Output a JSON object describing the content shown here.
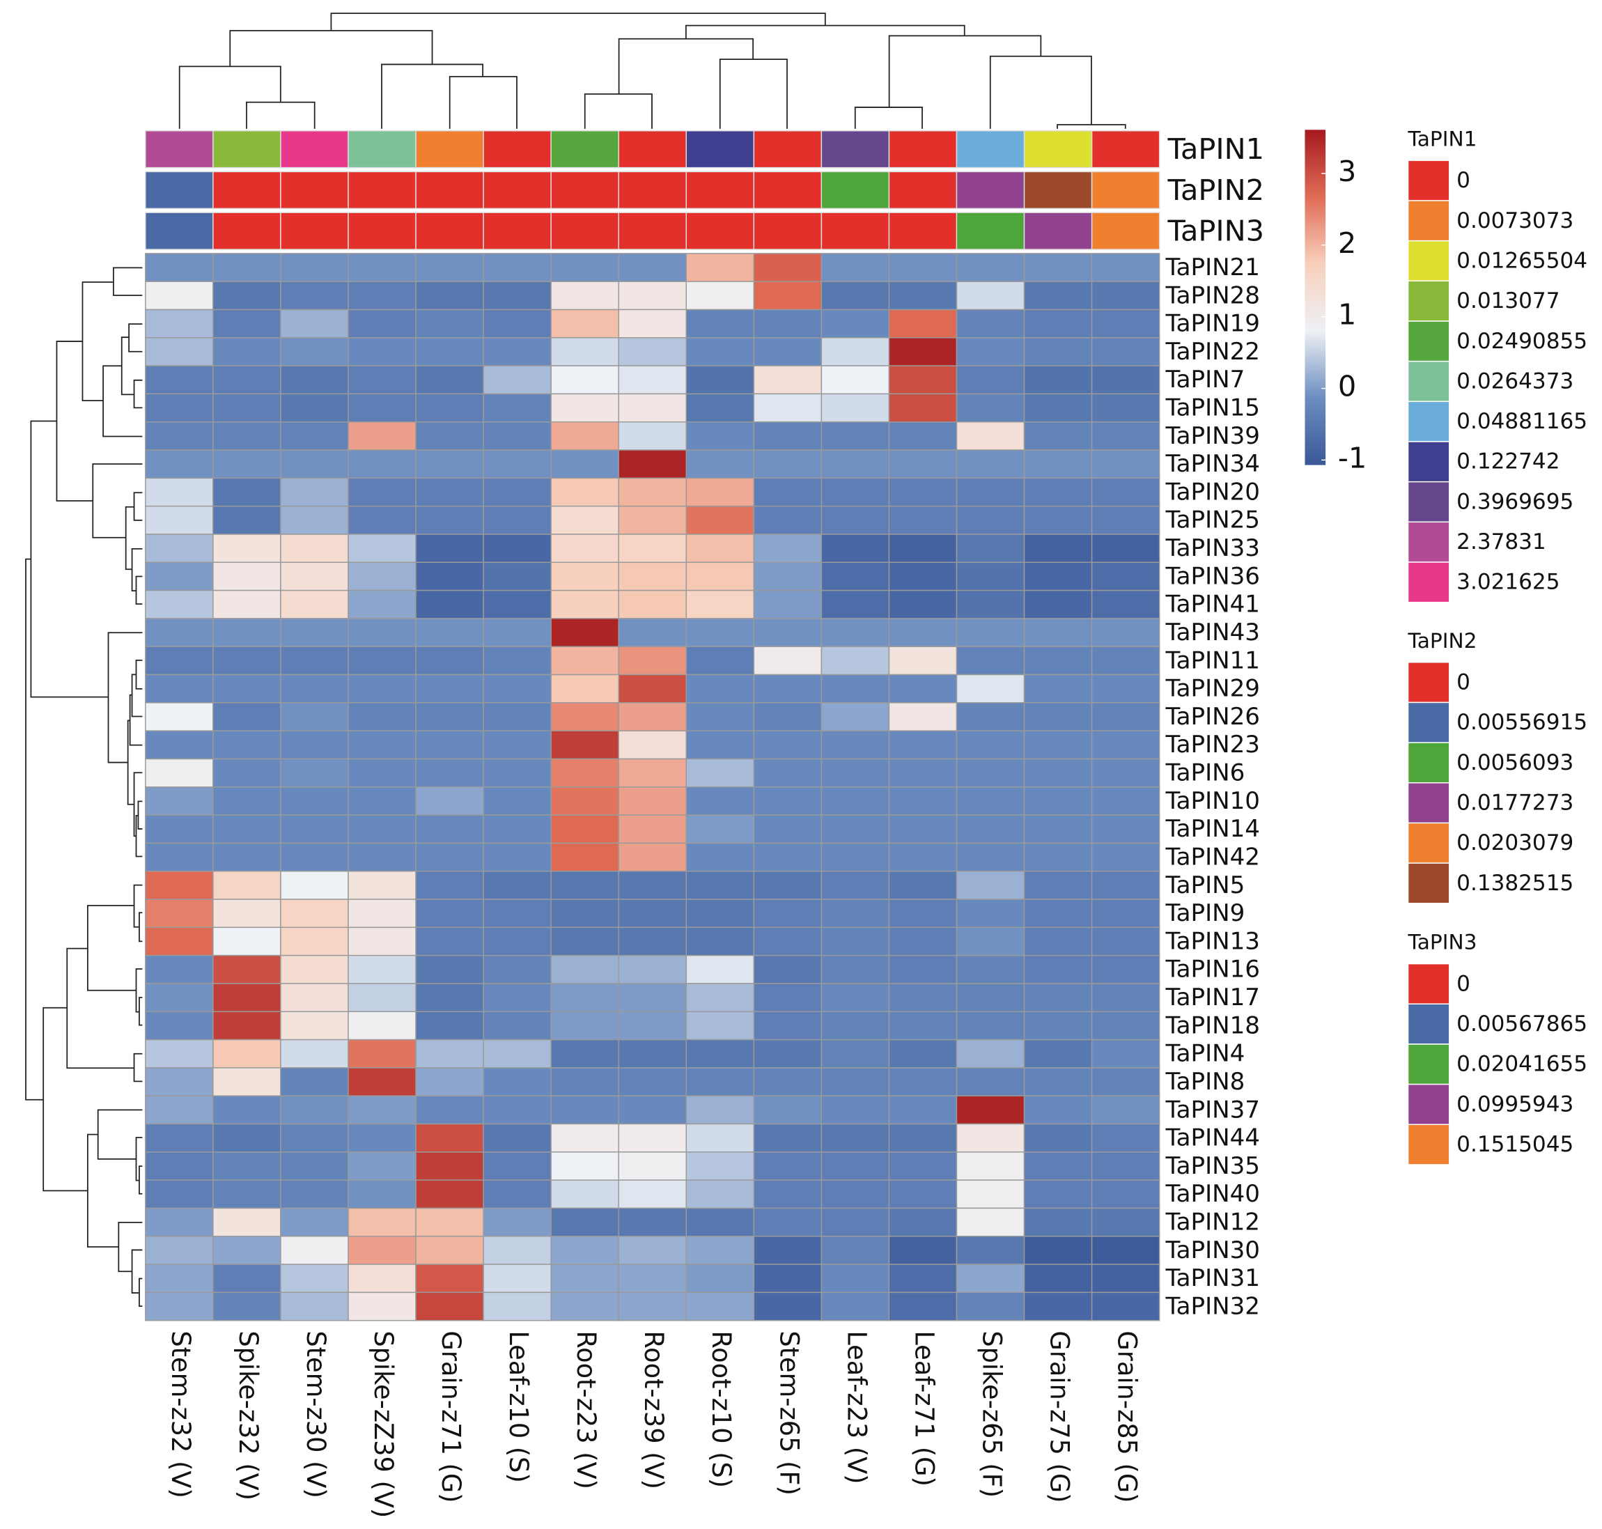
{
  "chart_data": {
    "type": "heatmap",
    "x": [
      "Stem-z32 (V)",
      "Spike-z32 (V)",
      "Stem-z30 (V)",
      "Spike-zZ39 (V)",
      "Grain-z71 (G)",
      "Leaf-z10 (S)",
      "Root-z23 (V)",
      "Root-z39 (V)",
      "Root-z10 (S)",
      "Stem-z65 (F)",
      "Leaf-z23 (V)",
      "Leaf-z71 (G)",
      "Spike-z65 (F)",
      "Grain-z75 (G)",
      "Grain-z85 (G)"
    ],
    "y": [
      "TaPIN21",
      "TaPIN28",
      "TaPIN19",
      "TaPIN22",
      "TaPIN7",
      "TaPIN15",
      "TaPIN39",
      "TaPIN34",
      "TaPIN20",
      "TaPIN25",
      "TaPIN33",
      "TaPIN36",
      "TaPIN41",
      "TaPIN43",
      "TaPIN11",
      "TaPIN29",
      "TaPIN26",
      "TaPIN23",
      "TaPIN6",
      "TaPIN10",
      "TaPIN14",
      "TaPIN42",
      "TaPIN5",
      "TaPIN9",
      "TaPIN13",
      "TaPIN16",
      "TaPIN17",
      "TaPIN18",
      "TaPIN4",
      "TaPIN8",
      "TaPIN37",
      "TaPIN44",
      "TaPIN35",
      "TaPIN40",
      "TaPIN12",
      "TaPIN30",
      "TaPIN31",
      "TaPIN32"
    ],
    "values": [
      [
        -0.1,
        -0.1,
        -0.1,
        -0.1,
        -0.1,
        -0.1,
        -0.1,
        -0.1,
        2.0,
        2.8,
        -0.1,
        -0.1,
        -0.1,
        -0.1,
        -0.1
      ],
      [
        0.9,
        -0.5,
        -0.4,
        -0.4,
        -0.5,
        -0.5,
        1.1,
        1.1,
        0.9,
        2.7,
        -0.5,
        -0.5,
        0.6,
        -0.5,
        -0.5
      ],
      [
        0.3,
        -0.4,
        0.2,
        -0.4,
        -0.3,
        -0.4,
        1.9,
        1.1,
        -0.3,
        -0.3,
        -0.2,
        2.7,
        -0.3,
        -0.4,
        -0.4
      ],
      [
        0.3,
        -0.2,
        -0.1,
        -0.2,
        -0.2,
        -0.2,
        0.6,
        0.4,
        -0.2,
        -0.2,
        0.6,
        3.5,
        -0.2,
        -0.3,
        -0.3
      ],
      [
        -0.4,
        -0.4,
        -0.5,
        -0.4,
        -0.5,
        0.3,
        0.8,
        0.7,
        -0.6,
        1.3,
        0.8,
        3.0,
        -0.4,
        -0.6,
        -0.6
      ],
      [
        -0.4,
        -0.4,
        -0.5,
        -0.4,
        -0.4,
        -0.3,
        1.1,
        1.1,
        -0.5,
        0.7,
        0.6,
        3.0,
        -0.3,
        -0.5,
        -0.5
      ],
      [
        -0.3,
        -0.3,
        -0.3,
        2.2,
        -0.3,
        -0.3,
        2.1,
        0.6,
        -0.2,
        -0.3,
        -0.3,
        -0.3,
        1.3,
        -0.3,
        -0.3
      ],
      [
        -0.1,
        -0.1,
        -0.1,
        -0.1,
        -0.1,
        -0.1,
        -0.1,
        3.5,
        -0.1,
        -0.1,
        -0.1,
        -0.1,
        -0.1,
        -0.1,
        -0.1
      ],
      [
        0.6,
        -0.5,
        0.2,
        -0.4,
        -0.4,
        -0.4,
        1.8,
        2.0,
        2.1,
        -0.4,
        -0.4,
        -0.4,
        -0.4,
        -0.4,
        -0.4
      ],
      [
        0.6,
        -0.5,
        0.2,
        -0.4,
        -0.4,
        -0.4,
        1.4,
        2.0,
        2.6,
        -0.4,
        -0.4,
        -0.4,
        -0.4,
        -0.4,
        -0.4
      ],
      [
        0.3,
        1.2,
        1.4,
        0.4,
        -0.8,
        -0.8,
        1.5,
        1.6,
        1.9,
        0.1,
        -0.8,
        -0.9,
        -0.5,
        -0.9,
        -0.9
      ],
      [
        0.0,
        1.1,
        1.3,
        0.2,
        -0.8,
        -0.6,
        1.7,
        1.8,
        1.8,
        0.0,
        -0.7,
        -0.8,
        -0.6,
        -0.8,
        -0.7
      ],
      [
        0.4,
        1.1,
        1.4,
        0.1,
        -0.8,
        -0.7,
        1.7,
        1.8,
        1.6,
        0.0,
        -0.7,
        -0.8,
        -0.6,
        -0.8,
        -0.7
      ],
      [
        -0.1,
        -0.1,
        -0.1,
        -0.1,
        -0.1,
        -0.1,
        3.5,
        -0.1,
        -0.1,
        -0.1,
        -0.1,
        -0.1,
        -0.1,
        -0.1,
        -0.1
      ],
      [
        -0.4,
        -0.4,
        -0.4,
        -0.4,
        -0.4,
        -0.3,
        2.0,
        2.3,
        -0.4,
        1.0,
        0.4,
        1.2,
        -0.3,
        -0.3,
        -0.3
      ],
      [
        -0.2,
        -0.2,
        -0.2,
        -0.2,
        -0.2,
        -0.2,
        1.8,
        3.0,
        -0.2,
        -0.2,
        -0.2,
        -0.2,
        0.7,
        -0.2,
        -0.2
      ],
      [
        0.8,
        -0.4,
        -0.1,
        -0.3,
        -0.3,
        -0.3,
        2.4,
        2.2,
        -0.2,
        -0.3,
        0.1,
        1.1,
        -0.3,
        -0.3,
        -0.3
      ],
      [
        -0.2,
        -0.2,
        -0.2,
        -0.2,
        -0.2,
        -0.2,
        3.2,
        1.3,
        -0.2,
        -0.2,
        -0.2,
        -0.2,
        -0.2,
        -0.2,
        -0.2
      ],
      [
        0.9,
        -0.2,
        -0.1,
        -0.2,
        -0.2,
        -0.2,
        2.5,
        2.1,
        0.3,
        -0.2,
        -0.2,
        -0.2,
        -0.2,
        -0.2,
        -0.2
      ],
      [
        0.0,
        -0.2,
        -0.2,
        -0.2,
        0.1,
        -0.2,
        2.6,
        2.2,
        -0.2,
        -0.2,
        -0.2,
        -0.2,
        -0.2,
        -0.2,
        -0.2
      ],
      [
        -0.2,
        -0.2,
        -0.2,
        -0.2,
        -0.2,
        -0.2,
        2.7,
        2.2,
        0.0,
        -0.2,
        -0.2,
        -0.2,
        -0.2,
        -0.2,
        -0.2
      ],
      [
        -0.2,
        -0.2,
        -0.2,
        -0.2,
        -0.2,
        -0.2,
        2.7,
        2.2,
        -0.2,
        -0.2,
        -0.2,
        -0.2,
        -0.2,
        -0.2,
        -0.2
      ],
      [
        2.7,
        1.6,
        0.8,
        1.2,
        -0.4,
        -0.5,
        -0.5,
        -0.5,
        -0.5,
        -0.5,
        -0.4,
        -0.5,
        0.2,
        -0.4,
        -0.4
      ],
      [
        2.5,
        1.2,
        1.6,
        1.1,
        -0.4,
        -0.4,
        -0.5,
        -0.5,
        -0.5,
        -0.4,
        -0.3,
        -0.4,
        -0.2,
        -0.4,
        -0.4
      ],
      [
        2.7,
        0.8,
        1.6,
        1.1,
        -0.4,
        -0.4,
        -0.5,
        -0.5,
        -0.5,
        -0.4,
        -0.3,
        -0.4,
        -0.1,
        -0.4,
        -0.4
      ],
      [
        -0.2,
        3.0,
        1.4,
        0.6,
        -0.5,
        -0.3,
        0.2,
        0.2,
        0.7,
        -0.5,
        -0.3,
        -0.4,
        -0.3,
        -0.4,
        -0.4
      ],
      [
        -0.1,
        3.2,
        1.3,
        0.5,
        -0.5,
        -0.2,
        0.0,
        0.0,
        0.3,
        -0.4,
        -0.2,
        -0.3,
        -0.3,
        -0.3,
        -0.3
      ],
      [
        -0.2,
        3.2,
        1.2,
        0.9,
        -0.5,
        -0.3,
        0.0,
        0.0,
        0.3,
        -0.4,
        -0.3,
        -0.3,
        -0.3,
        -0.3,
        -0.3
      ],
      [
        0.4,
        1.8,
        0.6,
        2.6,
        0.3,
        0.3,
        -0.5,
        -0.5,
        -0.5,
        -0.5,
        -0.3,
        -0.5,
        0.2,
        -0.5,
        -0.2
      ],
      [
        0.1,
        1.2,
        -0.3,
        3.2,
        0.1,
        -0.2,
        -0.3,
        -0.3,
        -0.3,
        -0.3,
        -0.3,
        -0.3,
        -0.3,
        -0.3,
        -0.3
      ],
      [
        0.1,
        -0.2,
        -0.1,
        0.0,
        -0.2,
        -0.2,
        -0.2,
        -0.2,
        0.2,
        -0.1,
        -0.2,
        -0.2,
        3.5,
        -0.2,
        -0.1
      ],
      [
        -0.4,
        -0.5,
        -0.3,
        -0.2,
        3.0,
        -0.5,
        1.0,
        1.0,
        0.6,
        -0.5,
        -0.5,
        -0.5,
        1.1,
        -0.5,
        -0.4
      ],
      [
        -0.4,
        -0.3,
        -0.3,
        0.0,
        3.2,
        -0.4,
        0.8,
        0.9,
        0.4,
        -0.4,
        -0.4,
        -0.4,
        0.9,
        -0.4,
        -0.4
      ],
      [
        -0.4,
        -0.3,
        -0.3,
        -0.1,
        3.2,
        -0.4,
        0.6,
        0.7,
        0.3,
        -0.4,
        -0.4,
        -0.4,
        0.9,
        -0.4,
        -0.4
      ],
      [
        0.0,
        1.2,
        0.0,
        1.9,
        1.9,
        0.0,
        -0.5,
        -0.5,
        -0.5,
        -0.4,
        -0.4,
        -0.5,
        0.9,
        -0.5,
        -0.5
      ],
      [
        0.2,
        0.1,
        0.9,
        2.2,
        2.0,
        0.5,
        0.1,
        0.2,
        0.1,
        -0.8,
        -0.3,
        -0.9,
        -0.5,
        -1.0,
        -1.0
      ],
      [
        0.1,
        -0.4,
        0.4,
        1.3,
        2.9,
        0.6,
        0.1,
        0.1,
        0.0,
        -0.8,
        -0.2,
        -0.7,
        0.1,
        -0.9,
        -0.9
      ],
      [
        0.1,
        -0.3,
        0.3,
        1.1,
        3.1,
        0.5,
        0.1,
        0.1,
        0.1,
        -0.8,
        -0.2,
        -0.7,
        -0.3,
        -0.8,
        -0.8
      ]
    ],
    "colorscale": [
      "#3a5898",
      "#6c8dc0",
      "#eef1f6",
      "#f8d0bc",
      "#e06c56",
      "#a51a1f"
    ],
    "colorbar": {
      "lim": [
        -1.07,
        3.61
      ],
      "ticks": [
        -1,
        0,
        1,
        2,
        3
      ]
    },
    "annotations": [
      {
        "name": "TaPIN1",
        "values": [
          2.37831,
          0.013077,
          3.021625,
          0.0264373,
          0.0073073,
          0,
          0.02490855,
          0,
          0.122742,
          0,
          0.3969695,
          0,
          0.04881165,
          0.01265504,
          0
        ],
        "levels": [
          0,
          0.0073073,
          0.01265504,
          0.013077,
          0.02490855,
          0.0264373,
          0.04881165,
          0.122742,
          0.3969695,
          2.37831,
          3.021625
        ],
        "colors": [
          "#e3302b",
          "#f08030",
          "#dde030",
          "#8ab83a",
          "#56a83e",
          "#7cc198",
          "#6aaddb",
          "#3f3f8f",
          "#66468c",
          "#b24a96",
          "#e8388a"
        ]
      },
      {
        "name": "TaPIN2",
        "values": [
          0.00556915,
          0,
          0,
          0,
          0,
          0,
          0,
          0,
          0,
          0,
          0.0056093,
          0,
          0.0177273,
          0.1382515,
          0.0203079
        ],
        "levels": [
          0,
          0.00556915,
          0.0056093,
          0.0177273,
          0.0203079,
          0.1382515
        ],
        "colors": [
          "#e3302b",
          "#4a6aa5",
          "#4ea53a",
          "#91428f",
          "#f08030",
          "#9c4a2a"
        ]
      },
      {
        "name": "TaPIN3",
        "values": [
          0.00567865,
          0,
          0,
          0,
          0,
          0,
          0,
          0,
          0,
          0,
          0,
          0,
          0.02041655,
          0.0995943,
          0.1515045
        ],
        "levels": [
          0,
          0.00567865,
          0.02041655,
          0.0995943,
          0.1515045
        ],
        "colors": [
          "#e3302b",
          "#4a6aa5",
          "#4ea53a",
          "#91428f",
          "#f08030"
        ]
      }
    ]
  }
}
